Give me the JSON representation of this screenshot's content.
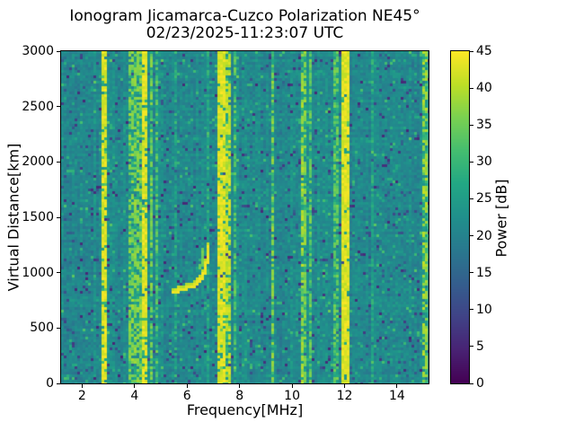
{
  "chart_data": {
    "type": "heatmap",
    "title": "Ionogram Jicamarca-Cuzco Polarization NE45°",
    "subtitle": "02/23/2025-11:23:07 UTC",
    "xlabel": "Frequency[MHz]",
    "ylabel": "Virtual Distance[km]",
    "colorbar_label": "Power [dB]",
    "colormap": "viridis",
    "xlim": [
      1.2,
      15.2
    ],
    "ylim": [
      0,
      3000
    ],
    "clim": [
      0,
      45
    ],
    "xticks": [
      2,
      4,
      6,
      8,
      10,
      12,
      14
    ],
    "yticks": [
      0,
      500,
      1000,
      1500,
      2000,
      2500,
      3000
    ],
    "cticks": [
      0,
      5,
      10,
      15,
      20,
      25,
      30,
      35,
      40,
      45
    ],
    "grid": false,
    "legend": "colorbar-right",
    "background_noise_db": {
      "mean": 21.3,
      "spread": 3.6,
      "dark_outlier_db": 10,
      "bright_outlier_db": 30
    },
    "rfi_bands_mhz": [
      {
        "f0": 2.72,
        "f1": 2.95,
        "power": 45,
        "speckle": 0.2
      },
      {
        "f0": 3.1,
        "f1": 3.17,
        "power": 37,
        "speckle": 0.55
      },
      {
        "f0": 3.8,
        "f1": 4.25,
        "power": 39,
        "speckle": 0.5
      },
      {
        "f0": 4.25,
        "f1": 4.5,
        "power": 45,
        "speckle": 0.18
      },
      {
        "f0": 4.62,
        "f1": 4.72,
        "power": 38,
        "speckle": 0.5
      },
      {
        "f0": 4.82,
        "f1": 4.9,
        "power": 36,
        "speckle": 0.55
      },
      {
        "f0": 5.55,
        "f1": 5.62,
        "power": 31,
        "speckle": 0.68
      },
      {
        "f0": 6.74,
        "f1": 6.8,
        "power": 31,
        "speckle": 0.72
      },
      {
        "f0": 7.15,
        "f1": 7.5,
        "power": 45,
        "speckle": 0.1
      },
      {
        "f0": 7.5,
        "f1": 7.66,
        "power": 43,
        "speckle": 0.35
      },
      {
        "f0": 7.8,
        "f1": 7.9,
        "power": 36,
        "speckle": 0.5
      },
      {
        "f0": 8.97,
        "f1": 9.05,
        "power": 41,
        "speckle": 0.4
      },
      {
        "f0": 9.07,
        "f1": 9.14,
        "power": 40,
        "speckle": 0.45
      },
      {
        "f0": 9.24,
        "f1": 9.32,
        "power": 39,
        "speckle": 0.45
      },
      {
        "f0": 9.47,
        "f1": 9.55,
        "power": 35,
        "speckle": 0.55
      },
      {
        "f0": 10.33,
        "f1": 10.44,
        "power": 41,
        "speckle": 0.4
      },
      {
        "f0": 10.48,
        "f1": 10.58,
        "power": 39,
        "speckle": 0.45
      },
      {
        "f0": 10.64,
        "f1": 10.76,
        "power": 37,
        "speckle": 0.5
      },
      {
        "f0": 11.56,
        "f1": 11.74,
        "power": 37,
        "speckle": 0.5
      },
      {
        "f0": 11.88,
        "f1": 12.14,
        "power": 45,
        "speckle": 0.06
      },
      {
        "f0": 13.04,
        "f1": 13.12,
        "power": 31,
        "speckle": 0.68
      },
      {
        "f0": 14.92,
        "f1": 15.2,
        "power": 41,
        "speckle": 0.5
      }
    ],
    "trace_echo": {
      "main_power_db": 45,
      "main_points_mhz_km": [
        [
          5.45,
          828
        ],
        [
          5.65,
          836
        ],
        [
          5.85,
          847
        ],
        [
          6.02,
          860
        ],
        [
          6.18,
          876
        ],
        [
          6.33,
          895
        ],
        [
          6.45,
          917
        ],
        [
          6.56,
          945
        ],
        [
          6.64,
          982
        ],
        [
          6.7,
          1030
        ],
        [
          6.74,
          1085
        ],
        [
          6.77,
          1145
        ],
        [
          6.79,
          1200
        ],
        [
          6.8,
          1245
        ]
      ],
      "secondary_power_db": 36,
      "secondary_points_mhz_km": [
        [
          6.52,
          1040
        ],
        [
          6.56,
          1095
        ],
        [
          6.6,
          1150
        ],
        [
          6.63,
          1210
        ]
      ]
    },
    "colors": {
      "figure_background": "#ffffff",
      "axis_spine": "#000000",
      "text": "#000000",
      "viridis_low": "#440154",
      "viridis_mid": "#21918c",
      "viridis_high": "#fde725"
    }
  }
}
